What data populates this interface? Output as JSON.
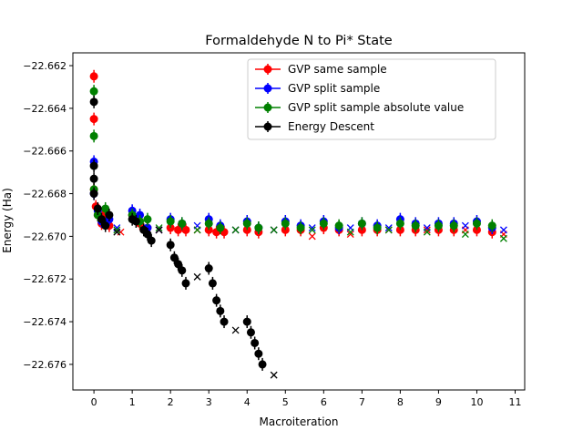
{
  "chart_data": {
    "type": "scatter",
    "title": "Formaldehyde N to Pi* State",
    "xlabel": "Macroiteration",
    "ylabel": "Energy (Ha)",
    "xlim": [
      -0.55,
      11.25
    ],
    "ylim": [
      -22.6772,
      -22.6614
    ],
    "xticks": [
      "0",
      "1",
      "2",
      "3",
      "4",
      "5",
      "6",
      "7",
      "8",
      "9",
      "10",
      "11"
    ],
    "yticks": [
      "−22.676",
      "−22.674",
      "−22.672",
      "−22.670",
      "−22.668",
      "−22.666",
      "−22.664",
      "−22.662"
    ],
    "yticks_values": [
      -22.676,
      -22.674,
      -22.672,
      -22.67,
      -22.668,
      -22.666,
      -22.664,
      -22.662
    ],
    "legend_position": "upper-right",
    "series": [
      {
        "name": "GVP same sample",
        "color": "#ff0000",
        "marker": "circle",
        "points": [
          [
            0,
            -22.6625
          ],
          [
            0,
            -22.6645
          ],
          [
            0,
            -22.6678
          ],
          [
            0.05,
            -22.6686
          ],
          [
            0.1,
            -22.669
          ],
          [
            0.2,
            -22.6694
          ],
          [
            0.3,
            -22.6689
          ],
          [
            0.4,
            -22.6695
          ],
          [
            1,
            -22.669
          ],
          [
            1.2,
            -22.6694
          ],
          [
            1.4,
            -22.6696
          ],
          [
            2,
            -22.6696
          ],
          [
            2.2,
            -22.6697
          ],
          [
            2.4,
            -22.6697
          ],
          [
            3,
            -22.6697
          ],
          [
            3.2,
            -22.6698
          ],
          [
            3.4,
            -22.6698
          ],
          [
            4,
            -22.6697
          ],
          [
            4.3,
            -22.6698
          ],
          [
            5,
            -22.6697
          ],
          [
            5.4,
            -22.6697
          ],
          [
            6,
            -22.6696
          ],
          [
            6.4,
            -22.6697
          ],
          [
            7,
            -22.6697
          ],
          [
            7.4,
            -22.6697
          ],
          [
            8,
            -22.6697
          ],
          [
            8.4,
            -22.6697
          ],
          [
            9,
            -22.6697
          ],
          [
            9.4,
            -22.6697
          ],
          [
            10,
            -22.6697
          ],
          [
            10.4,
            -22.6698
          ]
        ],
        "end_markers": [
          [
            0.7,
            -22.6698
          ],
          [
            1.7,
            -22.6697
          ],
          [
            2.7,
            -22.6697
          ],
          [
            3.7,
            -22.6697
          ],
          [
            4.7,
            -22.6697
          ],
          [
            5.7,
            -22.67
          ],
          [
            6.7,
            -22.6699
          ],
          [
            7.7,
            -22.6697
          ],
          [
            8.7,
            -22.6697
          ],
          [
            9.7,
            -22.6697
          ],
          [
            10.7,
            -22.6699
          ]
        ]
      },
      {
        "name": "GVP split sample",
        "color": "#0000ff",
        "marker": "circle",
        "points": [
          [
            0,
            -22.6665
          ],
          [
            0,
            -22.668
          ],
          [
            0.1,
            -22.6688
          ],
          [
            0.2,
            -22.6693
          ],
          [
            0.4,
            -22.6692
          ],
          [
            1,
            -22.6688
          ],
          [
            1.2,
            -22.669
          ],
          [
            1.4,
            -22.6696
          ],
          [
            2,
            -22.6692
          ],
          [
            2.3,
            -22.6694
          ],
          [
            3,
            -22.6692
          ],
          [
            3.3,
            -22.6695
          ],
          [
            4,
            -22.6693
          ],
          [
            4.3,
            -22.6696
          ],
          [
            5,
            -22.6693
          ],
          [
            5.4,
            -22.6695
          ],
          [
            6,
            -22.6693
          ],
          [
            6.4,
            -22.6696
          ],
          [
            7,
            -22.6694
          ],
          [
            7.4,
            -22.6695
          ],
          [
            8,
            -22.6692
          ],
          [
            8.4,
            -22.6694
          ],
          [
            9,
            -22.6694
          ],
          [
            9.4,
            -22.6694
          ],
          [
            10,
            -22.6693
          ],
          [
            10.4,
            -22.6696
          ]
        ],
        "end_markers": [
          [
            0.6,
            -22.6696
          ],
          [
            1.7,
            -22.6697
          ],
          [
            2.7,
            -22.6695
          ],
          [
            3.7,
            -22.6697
          ],
          [
            4.7,
            -22.6697
          ],
          [
            5.7,
            -22.6696
          ],
          [
            6.7,
            -22.6696
          ],
          [
            7.7,
            -22.6696
          ],
          [
            8.7,
            -22.6696
          ],
          [
            9.7,
            -22.6695
          ],
          [
            10.7,
            -22.6697
          ]
        ]
      },
      {
        "name": "GVP split sample absolute value",
        "color": "#008000",
        "marker": "circle",
        "points": [
          [
            0,
            -22.6632
          ],
          [
            0,
            -22.6653
          ],
          [
            0,
            -22.6678
          ],
          [
            0.1,
            -22.669
          ],
          [
            0.3,
            -22.6687
          ],
          [
            1,
            -22.669
          ],
          [
            1.2,
            -22.6693
          ],
          [
            1.4,
            -22.6692
          ],
          [
            2,
            -22.6693
          ],
          [
            2.3,
            -22.6694
          ],
          [
            3,
            -22.6694
          ],
          [
            3.3,
            -22.6696
          ],
          [
            4,
            -22.6694
          ],
          [
            4.3,
            -22.6696
          ],
          [
            5,
            -22.6694
          ],
          [
            5.4,
            -22.6696
          ],
          [
            6,
            -22.6694
          ],
          [
            6.4,
            -22.6695
          ],
          [
            7,
            -22.6694
          ],
          [
            7.4,
            -22.6696
          ],
          [
            8,
            -22.6694
          ],
          [
            8.4,
            -22.6695
          ],
          [
            9,
            -22.6695
          ],
          [
            9.4,
            -22.6695
          ],
          [
            10,
            -22.6694
          ],
          [
            10.4,
            -22.6695
          ]
        ],
        "end_markers": [
          [
            0.6,
            -22.6697
          ],
          [
            1.7,
            -22.6696
          ],
          [
            2.7,
            -22.6697
          ],
          [
            3.7,
            -22.6697
          ],
          [
            4.7,
            -22.6697
          ],
          [
            5.7,
            -22.6697
          ],
          [
            6.7,
            -22.6698
          ],
          [
            7.7,
            -22.6697
          ],
          [
            8.7,
            -22.6698
          ],
          [
            9.7,
            -22.6699
          ],
          [
            10.7,
            -22.6701
          ]
        ]
      },
      {
        "name": "Energy Descent",
        "color": "#000000",
        "marker": "circle",
        "points": [
          [
            0,
            -22.6637
          ],
          [
            0,
            -22.6667
          ],
          [
            0,
            -22.6673
          ],
          [
            0,
            -22.668
          ],
          [
            0.1,
            -22.6687
          ],
          [
            0.2,
            -22.6692
          ],
          [
            0.3,
            -22.6695
          ],
          [
            0.4,
            -22.669
          ],
          [
            1,
            -22.6692
          ],
          [
            1.1,
            -22.6693
          ],
          [
            1.3,
            -22.6697
          ],
          [
            1.4,
            -22.6699
          ],
          [
            1.5,
            -22.6702
          ],
          [
            2,
            -22.6704
          ],
          [
            2.1,
            -22.671
          ],
          [
            2.2,
            -22.6713
          ],
          [
            2.3,
            -22.6716
          ],
          [
            2.4,
            -22.6722
          ],
          [
            3,
            -22.6715
          ],
          [
            3.1,
            -22.6722
          ],
          [
            3.2,
            -22.673
          ],
          [
            3.3,
            -22.6735
          ],
          [
            3.4,
            -22.674
          ],
          [
            4,
            -22.674
          ],
          [
            4.1,
            -22.6745
          ],
          [
            4.2,
            -22.675
          ],
          [
            4.3,
            -22.6755
          ],
          [
            4.4,
            -22.676
          ]
        ],
        "end_markers": [
          [
            0.6,
            -22.6698
          ],
          [
            1.7,
            -22.6697
          ],
          [
            2.7,
            -22.6719
          ],
          [
            3.7,
            -22.6744
          ],
          [
            4.7,
            -22.6765
          ]
        ]
      }
    ],
    "grid": false
  }
}
